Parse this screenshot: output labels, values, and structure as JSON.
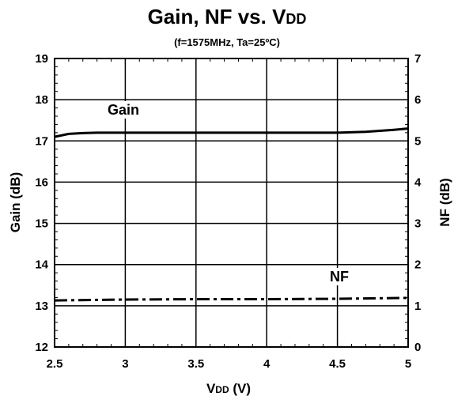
{
  "chart_data": {
    "type": "line",
    "title_main": "Gain, NF vs. V",
    "title_sub": "DD",
    "subtitle": "(f=1575MHz, Ta=25ºC)",
    "xlabel_main": "V",
    "xlabel_sub": "DD",
    "xlabel_unit": " (V)",
    "ylabel_left": "Gain (dB)",
    "ylabel_right": "NF (dB)",
    "xlim": [
      2.5,
      5
    ],
    "ylim_left": [
      12,
      19
    ],
    "ylim_right": [
      0,
      7
    ],
    "x_ticks": [
      "2.5",
      "3",
      "3.5",
      "4",
      "4.5",
      "5"
    ],
    "y_ticks_left": [
      "12",
      "13",
      "14",
      "15",
      "16",
      "17",
      "18",
      "19"
    ],
    "y_ticks_right": [
      "0",
      "1",
      "2",
      "3",
      "4",
      "5",
      "6",
      "7"
    ],
    "grid": true,
    "series": [
      {
        "name": "Gain",
        "axis": "left",
        "style": "solid",
        "x": [
          2.5,
          2.6,
          2.7,
          2.8,
          3.0,
          3.5,
          4.0,
          4.5,
          4.7,
          4.9,
          5.0
        ],
        "y": [
          17.1,
          17.17,
          17.19,
          17.2,
          17.2,
          17.2,
          17.2,
          17.2,
          17.22,
          17.27,
          17.3
        ]
      },
      {
        "name": "NF",
        "axis": "right",
        "style": "dashdot",
        "x": [
          2.5,
          3.0,
          3.5,
          4.0,
          4.5,
          5.0
        ],
        "y": [
          1.13,
          1.15,
          1.16,
          1.16,
          1.17,
          1.19
        ]
      }
    ]
  }
}
